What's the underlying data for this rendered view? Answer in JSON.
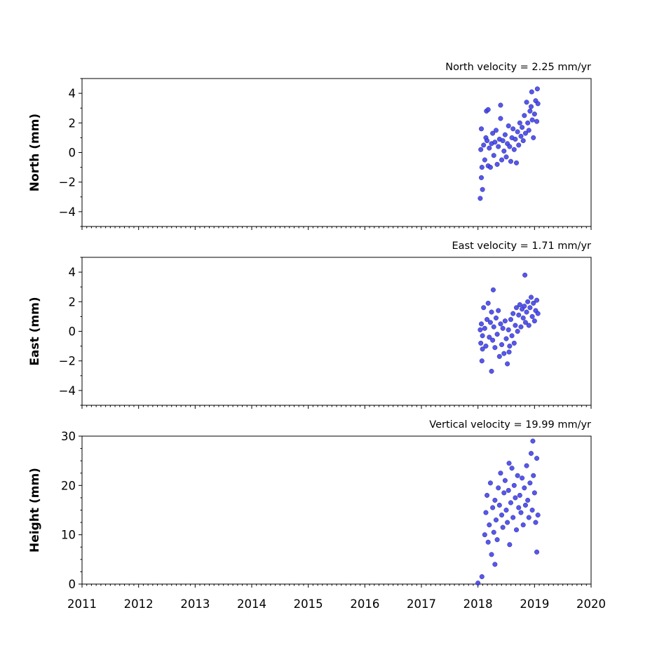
{
  "chart_data": [
    {
      "type": "scatter",
      "title": "North velocity = 2.25 mm/yr",
      "ylabel": "North (mm)",
      "xlim": [
        2011,
        2020
      ],
      "ylim": [
        -5,
        5
      ],
      "xticks": [
        2011,
        2012,
        2013,
        2014,
        2015,
        2016,
        2017,
        2018,
        2019,
        2020
      ],
      "yticks": [
        -4,
        -2,
        0,
        2,
        4
      ],
      "xtick_labels_shown": false,
      "point_color": "#4444ee",
      "series": [
        {
          "x": [
            2018.04,
            2018.05,
            2018.06,
            2018.07,
            2018.08,
            2018.1,
            2018.12,
            2018.14,
            2018.16,
            2018.18,
            2018.2,
            2018.22,
            2018.24,
            2018.26,
            2018.28,
            2018.3,
            2018.32,
            2018.34,
            2018.36,
            2018.38,
            2018.4,
            2018.42,
            2018.44,
            2018.46,
            2018.48,
            2018.5,
            2018.52,
            2018.54,
            2018.56,
            2018.58,
            2018.6,
            2018.62,
            2018.64,
            2018.66,
            2018.68,
            2018.7,
            2018.72,
            2018.74,
            2018.76,
            2018.78,
            2018.8,
            2018.82,
            2018.84,
            2018.86,
            2018.88,
            2018.9,
            2018.92,
            2018.94,
            2018.96,
            2018.98,
            2019.0,
            2019.02,
            2019.04,
            2019.06,
            2018.15,
            2018.18,
            2018.4,
            2018.95,
            2019.05,
            2018.06
          ],
          "y": [
            -3.1,
            0.2,
            1.6,
            -1.0,
            -2.5,
            0.5,
            -0.5,
            1.0,
            0.8,
            -0.9,
            0.3,
            -1.0,
            0.6,
            1.3,
            -0.2,
            0.7,
            1.5,
            -0.8,
            0.4,
            0.9,
            2.3,
            -0.5,
            0.8,
            0.1,
            1.2,
            -0.3,
            0.6,
            1.8,
            0.4,
            -0.6,
            1.0,
            1.6,
            0.2,
            0.9,
            -0.7,
            1.4,
            0.5,
            2.0,
            1.1,
            1.7,
            0.8,
            2.5,
            1.3,
            3.4,
            2.0,
            1.5,
            2.8,
            3.1,
            2.2,
            1.0,
            2.6,
            3.5,
            2.1,
            3.3,
            2.8,
            2.9,
            3.2,
            4.1,
            4.3,
            -1.7
          ]
        }
      ]
    },
    {
      "type": "scatter",
      "title": "East velocity = 1.71 mm/yr",
      "ylabel": "East (mm)",
      "xlim": [
        2011,
        2020
      ],
      "ylim": [
        -5,
        5
      ],
      "xticks": [
        2011,
        2012,
        2013,
        2014,
        2015,
        2016,
        2017,
        2018,
        2019,
        2020
      ],
      "yticks": [
        -4,
        -2,
        0,
        2,
        4
      ],
      "xtick_labels_shown": false,
      "point_color": "#4444ee",
      "series": [
        {
          "x": [
            2018.04,
            2018.05,
            2018.06,
            2018.07,
            2018.08,
            2018.1,
            2018.12,
            2018.14,
            2018.16,
            2018.18,
            2018.2,
            2018.22,
            2018.24,
            2018.26,
            2018.28,
            2018.3,
            2018.32,
            2018.34,
            2018.36,
            2018.38,
            2018.4,
            2018.42,
            2018.44,
            2018.46,
            2018.48,
            2018.5,
            2018.52,
            2018.54,
            2018.56,
            2018.58,
            2018.6,
            2018.62,
            2018.64,
            2018.66,
            2018.68,
            2018.7,
            2018.72,
            2018.74,
            2018.76,
            2018.78,
            2018.8,
            2018.82,
            2018.84,
            2018.86,
            2018.88,
            2018.9,
            2018.92,
            2018.94,
            2018.96,
            2018.98,
            2019.0,
            2019.02,
            2019.04,
            2019.06,
            2018.27,
            2018.83,
            2018.24,
            2018.55,
            2018.08
          ],
          "y": [
            0.1,
            -0.8,
            0.5,
            -2.0,
            -0.3,
            1.6,
            0.2,
            -1.0,
            0.8,
            1.9,
            -0.4,
            0.6,
            1.3,
            -0.6,
            0.3,
            -1.1,
            0.9,
            -0.2,
            1.4,
            -1.7,
            0.5,
            -0.9,
            0.2,
            -1.5,
            0.7,
            -0.5,
            -2.2,
            0.1,
            -1.0,
            0.8,
            -0.3,
            1.2,
            -0.8,
            0.4,
            1.6,
            0.0,
            1.1,
            1.8,
            0.3,
            1.5,
            0.9,
            1.7,
            0.6,
            1.3,
            2.0,
            0.4,
            1.6,
            2.3,
            1.0,
            1.9,
            0.7,
            1.4,
            2.1,
            1.2,
            2.8,
            3.8,
            -2.7,
            -1.4,
            -1.2
          ]
        }
      ]
    },
    {
      "type": "scatter",
      "title": "Vertical velocity = 19.99 mm/yr",
      "ylabel": "Height (mm)",
      "xlim": [
        2011,
        2020
      ],
      "ylim": [
        0,
        30
      ],
      "xticks": [
        2011,
        2012,
        2013,
        2014,
        2015,
        2016,
        2017,
        2018,
        2019,
        2020
      ],
      "xtick_labels": [
        "2011",
        "2012",
        "2013",
        "2014",
        "2015",
        "2016",
        "2017",
        "2018",
        "2019",
        "2020"
      ],
      "yticks": [
        0,
        10,
        20,
        30
      ],
      "xtick_labels_shown": true,
      "point_color": "#4444ee",
      "series": [
        {
          "x": [
            2018.0,
            2018.07,
            2018.12,
            2018.14,
            2018.16,
            2018.18,
            2018.2,
            2018.22,
            2018.24,
            2018.26,
            2018.28,
            2018.3,
            2018.32,
            2018.34,
            2018.36,
            2018.38,
            2018.4,
            2018.42,
            2018.44,
            2018.46,
            2018.48,
            2018.5,
            2018.52,
            2018.54,
            2018.56,
            2018.58,
            2018.6,
            2018.62,
            2018.64,
            2018.66,
            2018.68,
            2018.7,
            2018.72,
            2018.74,
            2018.76,
            2018.78,
            2018.8,
            2018.82,
            2018.84,
            2018.86,
            2018.88,
            2018.9,
            2018.92,
            2018.94,
            2018.96,
            2018.98,
            2019.0,
            2019.02,
            2019.04,
            2019.06,
            2018.97,
            2018.55,
            2019.04,
            2018.3
          ],
          "y": [
            0.2,
            1.5,
            10.0,
            14.5,
            18.0,
            8.5,
            12.0,
            20.5,
            6.0,
            15.5,
            10.5,
            17.0,
            13.0,
            9.0,
            19.5,
            16.0,
            22.5,
            14.0,
            11.5,
            18.5,
            21.0,
            15.0,
            12.5,
            19.0,
            8.0,
            16.5,
            23.5,
            13.5,
            20.0,
            17.5,
            11.0,
            22.0,
            15.5,
            18.0,
            14.5,
            21.5,
            12.0,
            19.5,
            16.0,
            24.0,
            17.0,
            13.5,
            20.5,
            26.5,
            15.0,
            22.0,
            18.5,
            12.5,
            25.5,
            14.0,
            29.0,
            24.5,
            6.5,
            4.0
          ]
        }
      ]
    }
  ]
}
